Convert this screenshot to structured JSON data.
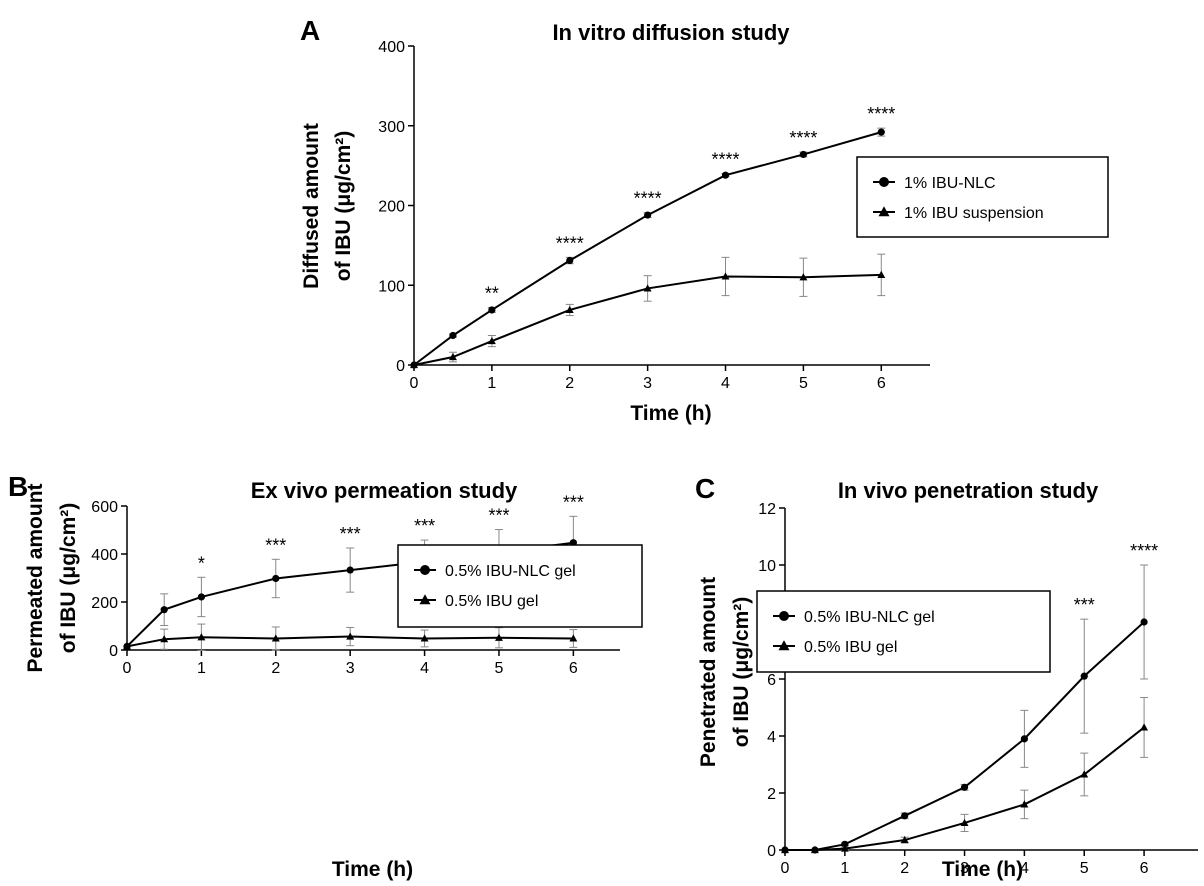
{
  "chart_data": [
    {
      "panel": "A",
      "type": "line",
      "title": "In vitro diffusion study",
      "xlabel": "Time (h)",
      "ylabel_lines": [
        "Diffused amount",
        "of IBU (μg/cm²)"
      ],
      "xlim": [
        0,
        6.6
      ],
      "ylim": [
        0,
        400
      ],
      "xticks": [
        0,
        1,
        2,
        3,
        4,
        5,
        6
      ],
      "yticks": [
        0,
        100,
        200,
        300,
        400
      ],
      "legend": "top-right",
      "grid": false,
      "x": [
        0,
        0.5,
        1,
        2,
        3,
        4,
        5,
        6
      ],
      "series": [
        {
          "name": "1% IBU-NLC",
          "marker": "circle",
          "values": [
            0,
            37,
            69,
            131,
            188,
            238,
            264,
            292
          ],
          "errors": [
            0,
            2,
            3,
            4,
            3,
            2,
            3,
            5
          ]
        },
        {
          "name": "1% IBU suspension",
          "marker": "triangle",
          "values": [
            0,
            10,
            30,
            69,
            96,
            111,
            110,
            113
          ],
          "errors": [
            0,
            6,
            7,
            7,
            16,
            24,
            24,
            26
          ]
        }
      ],
      "significance": [
        {
          "x": 1,
          "label": "**"
        },
        {
          "x": 2,
          "label": "****"
        },
        {
          "x": 3,
          "label": "****"
        },
        {
          "x": 4,
          "label": "****"
        },
        {
          "x": 5,
          "label": "****"
        },
        {
          "x": 6,
          "label": "****"
        }
      ]
    },
    {
      "panel": "B",
      "type": "line",
      "title": "Ex vivo permeation study",
      "xlabel": "Time (h)",
      "ylabel_lines": [
        "Permeated amount",
        "of IBU (μg/cm²)"
      ],
      "xlim": [
        0,
        6.6
      ],
      "ylim": [
        0,
        600
      ],
      "xticks": [
        0,
        1,
        2,
        3,
        4,
        5,
        6
      ],
      "yticks": [
        0,
        200,
        400,
        600
      ],
      "legend": "center-right",
      "grid": false,
      "x": [
        0,
        0.5,
        1,
        2,
        3,
        4,
        5,
        6
      ],
      "series": [
        {
          "name": "0.5% IBU-NLC gel",
          "marker": "circle",
          "values": [
            15,
            168,
            221,
            298,
            333,
            368,
            407,
            447
          ],
          "errors": [
            0,
            66,
            82,
            80,
            92,
            90,
            95,
            110
          ]
        },
        {
          "name": "0.5% IBU gel",
          "marker": "triangle",
          "values": [
            15,
            45,
            53,
            48,
            56,
            48,
            51,
            48
          ],
          "errors": [
            0,
            42,
            55,
            48,
            38,
            35,
            42,
            37
          ]
        }
      ],
      "significance": [
        {
          "x": 1,
          "label": "*"
        },
        {
          "x": 2,
          "label": "***"
        },
        {
          "x": 3,
          "label": "***"
        },
        {
          "x": 4,
          "label": "***"
        },
        {
          "x": 5,
          "label": "***"
        },
        {
          "x": 6,
          "label": "***"
        }
      ]
    },
    {
      "panel": "C",
      "type": "line",
      "title": "In vivo penetration study",
      "xlabel": "Time (h)",
      "ylabel_lines": [
        "Penetrated amount",
        "of IBU (μg/cm²)"
      ],
      "xlim": [
        0,
        6.6
      ],
      "ylim": [
        0,
        12
      ],
      "xticks": [
        0,
        1,
        2,
        3,
        4,
        5,
        6
      ],
      "yticks": [
        0,
        2,
        4,
        6,
        8,
        10,
        12
      ],
      "legend": "top-left",
      "grid": false,
      "x": [
        0,
        0.5,
        1,
        2,
        3,
        4,
        5,
        6
      ],
      "series": [
        {
          "name": "0.5% IBU-NLC gel",
          "marker": "circle",
          "values": [
            0,
            0,
            0.2,
            1.2,
            2.2,
            3.9,
            6.1,
            8.0
          ],
          "errors": [
            0,
            0,
            0.05,
            0.1,
            0.1,
            1.0,
            2.0,
            2.0
          ]
        },
        {
          "name": "0.5% IBU gel",
          "marker": "triangle",
          "values": [
            0,
            0,
            0.05,
            0.35,
            0.95,
            1.6,
            2.65,
            4.3
          ],
          "errors": [
            0,
            0,
            0.05,
            0.1,
            0.3,
            0.5,
            0.75,
            1.05
          ]
        }
      ],
      "significance": [
        {
          "x": 5,
          "label": "***"
        },
        {
          "x": 6,
          "label": "****"
        }
      ]
    }
  ]
}
